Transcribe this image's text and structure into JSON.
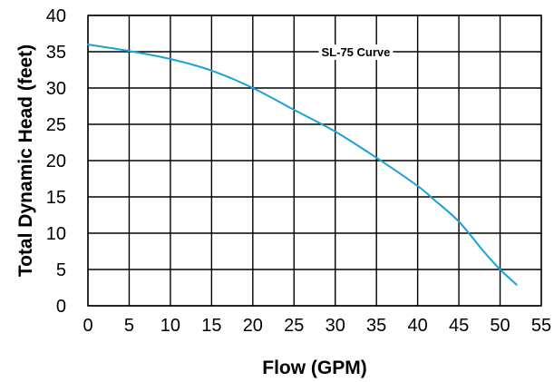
{
  "chart_data": {
    "type": "line",
    "title": "",
    "xlabel": "Flow (GPM)",
    "ylabel": "Total Dynamic Head (feet)",
    "xlim": [
      0,
      55
    ],
    "ylim": [
      0,
      40
    ],
    "xticks": [
      0,
      5,
      10,
      15,
      20,
      25,
      30,
      35,
      40,
      45,
      50,
      55
    ],
    "yticks": [
      0,
      5,
      10,
      15,
      20,
      25,
      30,
      35,
      40
    ],
    "grid": true,
    "legend": "none",
    "series": [
      {
        "name": "SL-75 Curve",
        "color": "#1ba1d8",
        "x": [
          0,
          5,
          10,
          15,
          20,
          25,
          30,
          35,
          40,
          42,
          45,
          48,
          50,
          52
        ],
        "y": [
          36,
          35.1,
          34,
          32.4,
          30,
          27,
          24,
          20.4,
          16.5,
          14.6,
          11.6,
          7.5,
          5,
          2.9
        ]
      }
    ],
    "annotations": [
      {
        "text": "SL-75 Curve",
        "x": 32.5,
        "y": 35
      }
    ]
  }
}
